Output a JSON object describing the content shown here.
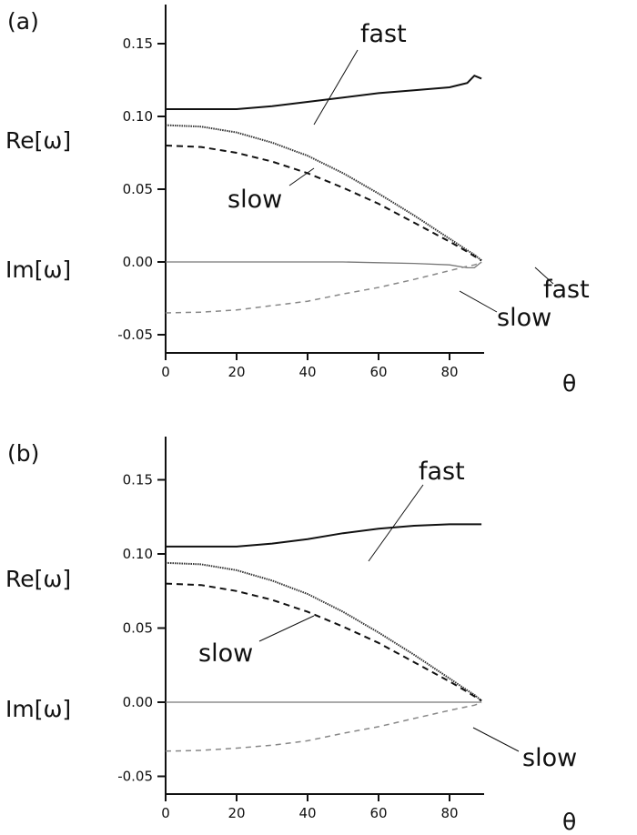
{
  "chart_data": [
    {
      "type": "line",
      "panel_label": "(a)",
      "xlabel": "θ",
      "ylabel_upper": "Re[ω]",
      "ylabel_lower": "Im[ω]",
      "xlim": [
        0,
        89
      ],
      "ylim": [
        -0.06,
        0.175
      ],
      "xticks": [
        "0",
        "20",
        "40",
        "60",
        "80"
      ],
      "yticks": [
        "-0.05",
        "0.00",
        "0.05",
        "0.10",
        "0.15"
      ],
      "grid": false,
      "x": [
        0,
        10,
        20,
        30,
        40,
        50,
        60,
        70,
        80,
        85,
        87,
        89
      ],
      "series": [
        {
          "style": "solid",
          "color": "#111111",
          "values": [
            0.105,
            0.105,
            0.105,
            0.107,
            0.11,
            0.113,
            0.116,
            0.118,
            0.12,
            0.123,
            0.128,
            0.126
          ]
        },
        {
          "style": "dotted",
          "color": "#333333",
          "values": [
            0.094,
            0.093,
            0.089,
            0.082,
            0.073,
            0.061,
            0.047,
            0.032,
            0.016,
            0.008,
            0.005,
            0.001
          ]
        },
        {
          "style": "dashed",
          "color": "#111111",
          "values": [
            0.08,
            0.079,
            0.075,
            0.069,
            0.061,
            0.051,
            0.04,
            0.027,
            0.014,
            0.007,
            0.004,
            0.001
          ]
        },
        {
          "style": "solid-thin",
          "color": "#777777",
          "values": [
            0,
            0,
            0,
            0,
            0,
            0,
            -0.0005,
            -0.001,
            -0.002,
            -0.004,
            -0.004,
            0
          ]
        },
        {
          "style": "dashed-thin",
          "color": "#888888",
          "values": [
            -0.035,
            -0.0345,
            -0.033,
            -0.03,
            -0.027,
            -0.022,
            -0.0175,
            -0.012,
            -0.006,
            -0.003,
            -0.002,
            -0.0003
          ]
        }
      ],
      "annotations": [
        {
          "text": "fast",
          "target": "Re fast"
        },
        {
          "text": "slow",
          "target": "Re slow"
        },
        {
          "text": "fast",
          "target": "Im fast"
        },
        {
          "text": "slow",
          "target": "Im slow"
        }
      ]
    },
    {
      "type": "line",
      "panel_label": "(b)",
      "xlabel": "θ",
      "ylabel_upper": "Re[ω]",
      "ylabel_lower": "Im[ω]",
      "xlim": [
        0,
        89
      ],
      "ylim": [
        -0.06,
        0.175
      ],
      "xticks": [
        "0",
        "20",
        "40",
        "60",
        "80"
      ],
      "yticks": [
        "-0.05",
        "0.00",
        "0.05",
        "0.10",
        "0.15"
      ],
      "grid": false,
      "x": [
        0,
        10,
        20,
        30,
        40,
        50,
        60,
        70,
        80,
        85,
        87,
        89
      ],
      "series": [
        {
          "style": "solid",
          "color": "#111111",
          "values": [
            0.105,
            0.105,
            0.105,
            0.107,
            0.11,
            0.114,
            0.117,
            0.119,
            0.12,
            0.12,
            0.12,
            0.12
          ]
        },
        {
          "style": "dotted",
          "color": "#333333",
          "values": [
            0.094,
            0.093,
            0.089,
            0.082,
            0.073,
            0.061,
            0.047,
            0.032,
            0.016,
            0.008,
            0.005,
            0.001
          ]
        },
        {
          "style": "dashed",
          "color": "#111111",
          "values": [
            0.08,
            0.079,
            0.075,
            0.069,
            0.061,
            0.051,
            0.04,
            0.027,
            0.014,
            0.007,
            0.004,
            0.001
          ]
        },
        {
          "style": "solid-thin",
          "color": "#777777",
          "values": [
            0,
            0,
            0,
            0,
            0,
            0,
            0,
            0,
            0,
            0,
            0,
            0
          ]
        },
        {
          "style": "dashed-thin",
          "color": "#888888",
          "values": [
            -0.033,
            -0.0325,
            -0.031,
            -0.029,
            -0.026,
            -0.021,
            -0.0165,
            -0.011,
            -0.0055,
            -0.003,
            -0.002,
            -0.0003
          ]
        }
      ],
      "annotations": [
        {
          "text": "fast",
          "target": "Re fast"
        },
        {
          "text": "slow",
          "target": "Re slow"
        },
        {
          "text": "slow",
          "target": "Im slow"
        }
      ]
    }
  ]
}
